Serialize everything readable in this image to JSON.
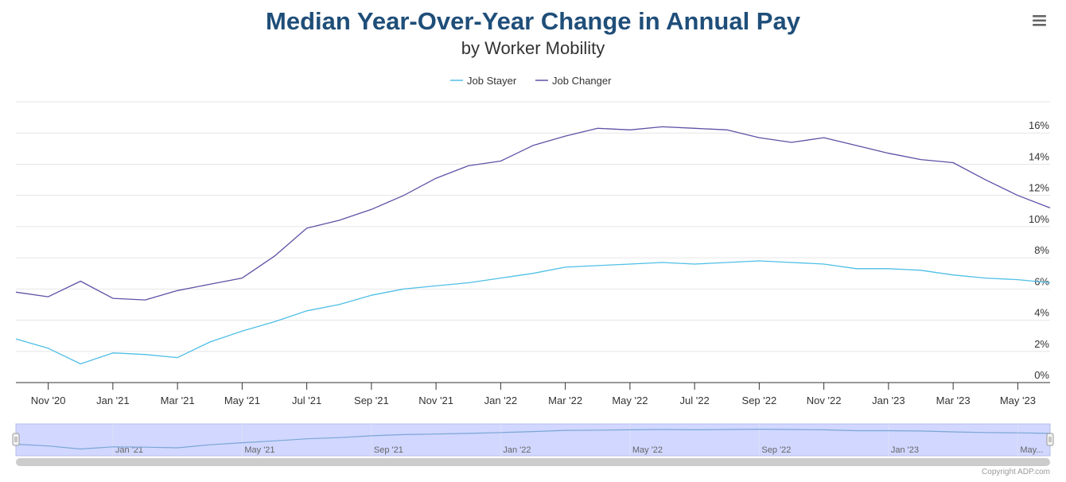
{
  "header": {
    "title": "Median Year-Over-Year Change in Annual Pay",
    "subtitle": "by Worker Mobility",
    "menu_icon": "hamburger-menu-icon"
  },
  "credits": "Copyright ADP.com",
  "colors": {
    "title": "#1f4e79",
    "subtitle": "#333333",
    "job_stayer": "#4fbfe6",
    "job_changer": "#5d52a5",
    "grid": "#e6e6e6",
    "navigator_fill": "#ccd3ff",
    "navigator_line": "#7aa6d6",
    "scrollbar": "#cccccc"
  },
  "chart_data": {
    "type": "line",
    "title": "Median Year-Over-Year Change in Annual Pay",
    "subtitle": "by Worker Mobility",
    "legend_position": "top-center",
    "grid": true,
    "y_axis_side": "right",
    "ylim": [
      0,
      18
    ],
    "y_ticks": [
      0,
      2,
      4,
      6,
      8,
      10,
      12,
      14,
      16
    ],
    "y_tick_labels": [
      "0%",
      "2%",
      "4%",
      "6%",
      "8%",
      "10%",
      "12%",
      "14%",
      "16%"
    ],
    "x_tick_labels": [
      "Nov '20",
      "Jan '21",
      "Mar '21",
      "May '21",
      "Jul '21",
      "Sep '21",
      "Nov '21",
      "Jan '22",
      "Mar '22",
      "May '22",
      "Jul '22",
      "Sep '22",
      "Nov '22",
      "Jan '23",
      "Mar '23",
      "May '23"
    ],
    "navigator_tick_labels": [
      "Jan '21",
      "May '21",
      "Sep '21",
      "Jan '22",
      "May '22",
      "Sep '22",
      "Jan '23",
      "May..."
    ],
    "x": [
      "Oct '20",
      "Nov '20",
      "Dec '20",
      "Jan '21",
      "Feb '21",
      "Mar '21",
      "Apr '21",
      "May '21",
      "Jun '21",
      "Jul '21",
      "Aug '21",
      "Sep '21",
      "Oct '21",
      "Nov '21",
      "Dec '21",
      "Jan '22",
      "Feb '22",
      "Mar '22",
      "Apr '22",
      "May '22",
      "Jun '22",
      "Jul '22",
      "Aug '22",
      "Sep '22",
      "Oct '22",
      "Nov '22",
      "Dec '22",
      "Jan '23",
      "Feb '23",
      "Mar '23",
      "Apr '23",
      "May '23",
      "Jun '23"
    ],
    "series": [
      {
        "name": "Job Stayer",
        "values": [
          2.8,
          2.2,
          1.2,
          1.9,
          1.8,
          1.6,
          2.6,
          3.3,
          3.9,
          4.6,
          5.0,
          5.6,
          6.0,
          6.2,
          6.4,
          6.7,
          7.0,
          7.4,
          7.5,
          7.6,
          7.7,
          7.6,
          7.7,
          7.8,
          7.7,
          7.6,
          7.3,
          7.3,
          7.2,
          6.9,
          6.7,
          6.6,
          6.4
        ]
      },
      {
        "name": "Job Changer",
        "values": [
          5.8,
          5.5,
          6.5,
          5.4,
          5.3,
          5.9,
          6.3,
          6.7,
          8.1,
          9.9,
          10.4,
          11.1,
          12.0,
          13.1,
          13.9,
          14.2,
          15.2,
          15.8,
          16.3,
          16.2,
          16.4,
          16.3,
          16.2,
          15.7,
          15.4,
          15.7,
          15.2,
          14.7,
          14.3,
          14.1,
          13.0,
          12.0,
          11.2
        ]
      }
    ]
  }
}
